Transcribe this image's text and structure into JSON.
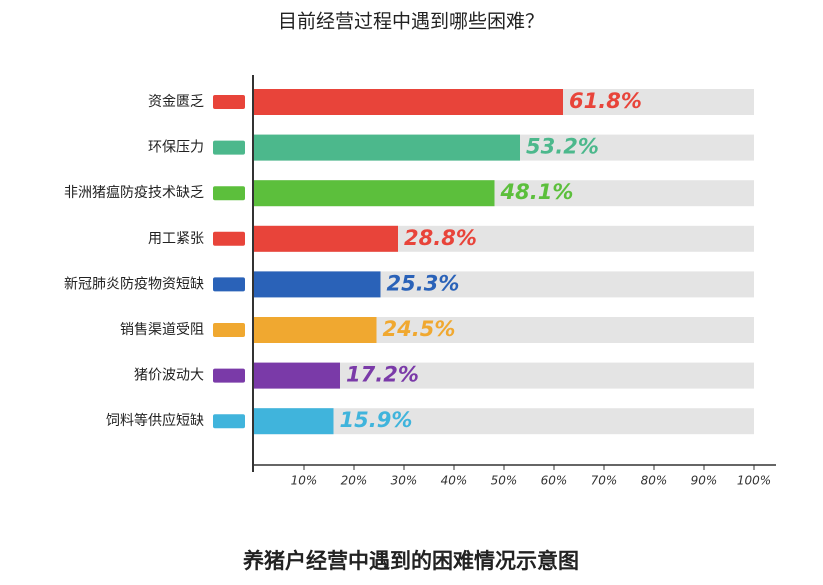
{
  "chart_data": {
    "type": "bar",
    "orientation": "horizontal",
    "title": "目前经营过程中遇到哪些困难？",
    "caption": "养猪户经营中遇到的困难情况示意图",
    "categories": [
      "资金匮乏",
      "环保压力",
      "非洲猪瘟防疫技术缺乏",
      "用工紧张",
      "新冠肺炎防疫物资短缺",
      "销售渠道受阻",
      "猪价波动大",
      "饲料等供应短缺"
    ],
    "values": [
      61.8,
      53.2,
      48.1,
      28.8,
      25.3,
      24.5,
      17.2,
      15.9
    ],
    "value_labels": [
      "61.8%",
      "53.2%",
      "48.1%",
      "28.8%",
      "25.3%",
      "24.5%",
      "17.2%",
      "15.9%"
    ],
    "colors": [
      "#e8443a",
      "#4cb88c",
      "#5cbf3c",
      "#e8443a",
      "#2a62b8",
      "#f0a830",
      "#7a3aa8",
      "#40b4dc"
    ],
    "xlim": [
      0,
      100
    ],
    "xticks": [
      {
        "value": 10,
        "label": "10%"
      },
      {
        "value": 20,
        "label": "20%"
      },
      {
        "value": 30,
        "label": "30%"
      },
      {
        "value": 40,
        "label": "40%"
      },
      {
        "value": 50,
        "label": "50%"
      },
      {
        "value": 60,
        "label": "60%"
      },
      {
        "value": 70,
        "label": "70%"
      },
      {
        "value": 80,
        "label": "80%"
      },
      {
        "value": 90,
        "label": "90%"
      },
      {
        "value": 100,
        "label": "100%"
      }
    ]
  }
}
